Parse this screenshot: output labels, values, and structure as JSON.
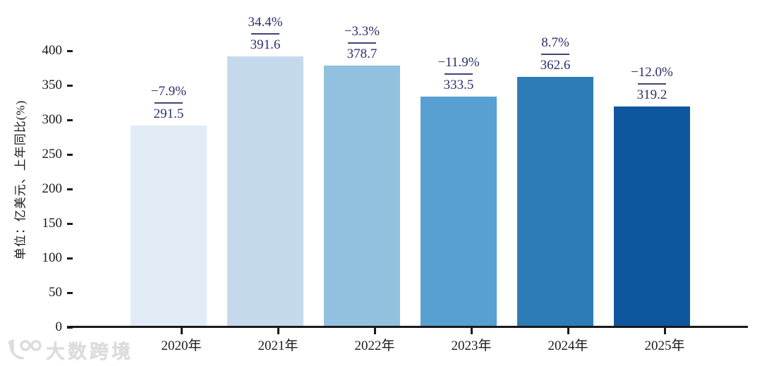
{
  "watermark": {
    "logo": "100",
    "text": "大数跨境"
  },
  "chart_data": {
    "type": "bar",
    "title": "",
    "categories": [
      "2020年",
      "2021年",
      "2022年",
      "2023年",
      "2024年",
      "2025年"
    ],
    "values": [
      291.5,
      391.6,
      378.7,
      333.5,
      362.6,
      319.2
    ],
    "value_labels": [
      "291.5",
      "391.6",
      "378.7",
      "333.5",
      "362.6",
      "319.2"
    ],
    "pct_changes": [
      "−7.9%",
      "34.4%",
      "−3.3%",
      "−11.9%",
      "8.7%",
      "−12.0%"
    ],
    "bar_colors": [
      "#e2ecf6",
      "#c5d9ed",
      "#92c1e0",
      "#57a0d1",
      "#2d7cb8",
      "#0e579e"
    ],
    "xlabel": "",
    "ylabel": "单位：亿美元、上年同比(%)",
    "yticks": [
      0,
      50,
      100,
      150,
      200,
      250,
      300,
      350,
      400
    ],
    "ylim": [
      0,
      430
    ],
    "grid": false,
    "legend_position": "none",
    "annotation_color": "#2b2f6e",
    "separator_color": "#3f4577",
    "axis_color": "#1a1a1a"
  }
}
